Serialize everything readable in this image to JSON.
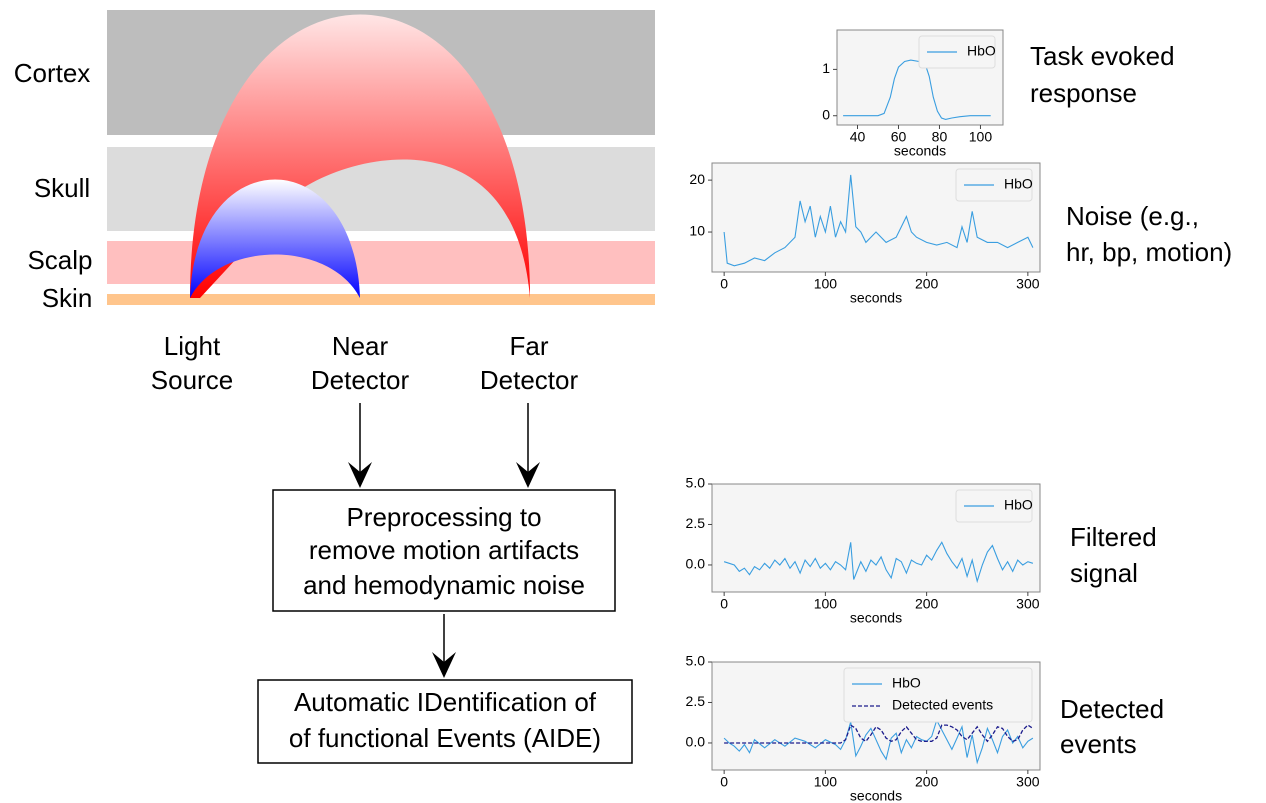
{
  "diagram": {
    "layers": [
      "Cortex",
      "Skull",
      "Scalp",
      "Skin"
    ],
    "optodes": [
      [
        "Light",
        "Source"
      ],
      [
        "Near",
        "Detector"
      ],
      [
        "Far",
        "Detector"
      ]
    ],
    "steps": [
      [
        "Preprocessing to",
        "remove motion artifacts",
        "and hemodynamic noise"
      ],
      [
        "Automatic IDentification of",
        "of functional Events (AIDE)"
      ]
    ],
    "captions": [
      [
        "Task evoked",
        "response"
      ],
      [
        "Noise (e.g.,",
        "hr, bp, motion)"
      ],
      [
        "Filtered",
        "signal"
      ],
      [
        "Detected",
        "events"
      ]
    ]
  },
  "chart_data": [
    {
      "type": "line",
      "xlabel": "seconds",
      "legend": "upper right",
      "x": [
        33,
        40,
        50,
        53,
        56,
        58,
        60,
        63,
        66,
        70,
        73,
        75,
        77,
        79,
        81,
        83,
        86,
        90,
        95,
        100,
        105
      ],
      "series": [
        {
          "name": "HbO",
          "color": "#3a9ee0",
          "values": [
            0,
            0,
            0,
            0.05,
            0.4,
            0.8,
            1.05,
            1.17,
            1.2,
            1.17,
            1.12,
            0.85,
            0.4,
            0.1,
            -0.05,
            -0.08,
            -0.05,
            -0.02,
            0,
            0,
            0
          ]
        }
      ],
      "xlim": [
        30,
        111
      ],
      "ylim": [
        -0.2,
        1.85
      ],
      "xticks": [
        40,
        60,
        80,
        100
      ],
      "yticks": [
        0,
        1
      ]
    },
    {
      "type": "line",
      "xlabel": "seconds",
      "legend": "upper right",
      "x": [
        0,
        3,
        10,
        20,
        30,
        40,
        50,
        60,
        70,
        75,
        80,
        85,
        90,
        95,
        100,
        105,
        110,
        115,
        120,
        125,
        130,
        135,
        140,
        150,
        160,
        170,
        180,
        185,
        190,
        200,
        210,
        220,
        230,
        235,
        240,
        245,
        250,
        260,
        270,
        280,
        290,
        300,
        305
      ],
      "series": [
        {
          "name": "HbO",
          "color": "#3a9ee0",
          "values": [
            10,
            4,
            3.5,
            4,
            5,
            4.5,
            6,
            7,
            9,
            16,
            12,
            15,
            9,
            13,
            10,
            15,
            9,
            12,
            10,
            21,
            11,
            10,
            8,
            10,
            8,
            9,
            13,
            10,
            9,
            8,
            7.5,
            8,
            7,
            11,
            8,
            14,
            9,
            8,
            8,
            7,
            8,
            9,
            7
          ]
        }
      ],
      "xlim": [
        -12,
        312
      ],
      "ylim": [
        2.3,
        23.3
      ],
      "xticks": [
        0,
        100,
        200,
        300
      ],
      "yticks": [
        10,
        20
      ]
    },
    {
      "type": "line",
      "xlabel": "seconds",
      "legend": "upper right",
      "x": [
        0,
        5,
        10,
        15,
        20,
        25,
        30,
        35,
        40,
        45,
        50,
        55,
        60,
        65,
        70,
        75,
        80,
        85,
        90,
        95,
        100,
        105,
        110,
        115,
        120,
        125,
        128,
        135,
        140,
        145,
        150,
        155,
        160,
        165,
        170,
        175,
        180,
        185,
        190,
        195,
        200,
        205,
        210,
        215,
        220,
        225,
        230,
        235,
        240,
        245,
        250,
        255,
        260,
        265,
        270,
        275,
        280,
        285,
        290,
        295,
        300,
        305
      ],
      "series": [
        {
          "name": "HbO",
          "color": "#3a9ee0",
          "values": [
            0.2,
            0.1,
            0,
            -0.4,
            -0.2,
            -0.6,
            -0.1,
            -0.3,
            0.1,
            -0.2,
            0.3,
            0,
            0.4,
            -0.2,
            0.2,
            -0.5,
            0.3,
            -0.1,
            0.4,
            -0.2,
            0.1,
            -0.3,
            0.2,
            0,
            -0.3,
            1.4,
            -0.9,
            0.2,
            -0.4,
            0.3,
            0,
            0.5,
            -0.3,
            -0.8,
            0.4,
            0.2,
            -0.5,
            0.3,
            0.1,
            0,
            0.6,
            0.3,
            0.9,
            1.4,
            0.7,
            0.2,
            -0.2,
            0.4,
            -0.7,
            0.3,
            -1,
            0,
            0.8,
            1.2,
            0.4,
            -0.3,
            0.2,
            -0.4,
            0.3,
            0,
            0.2,
            0.1
          ]
        }
      ],
      "xlim": [
        -12,
        312
      ],
      "ylim": [
        -1.67,
        5.0
      ],
      "xticks": [
        0,
        100,
        200,
        300
      ],
      "yticks": [
        {
          "value": 0,
          "label": "0.0"
        },
        {
          "value": 2.5,
          "label": "2.5"
        },
        {
          "value": 5,
          "label": "5.0"
        }
      ]
    },
    {
      "type": "line",
      "xlabel": "seconds",
      "legend": "upper right",
      "x": [
        0,
        5,
        10,
        15,
        20,
        25,
        30,
        40,
        50,
        60,
        70,
        80,
        90,
        100,
        110,
        115,
        120,
        125,
        130,
        135,
        140,
        145,
        150,
        155,
        160,
        165,
        170,
        175,
        180,
        185,
        190,
        195,
        200,
        205,
        210,
        215,
        220,
        225,
        230,
        235,
        240,
        245,
        250,
        255,
        260,
        265,
        270,
        275,
        280,
        285,
        290,
        295,
        300,
        305
      ],
      "series": [
        {
          "name": "HbO",
          "color": "#3a9ee0",
          "values": [
            0.3,
            0,
            -0.2,
            -0.5,
            -0.1,
            -0.6,
            0.2,
            -0.3,
            0.2,
            -0.2,
            0.3,
            0.1,
            -0.3,
            0.2,
            -0.1,
            -0.4,
            0.2,
            1.3,
            -0.8,
            -0.2,
            0.5,
            0.9,
            0.2,
            -0.5,
            -1,
            0.3,
            0.6,
            -0.6,
            0.2,
            -0.3,
            0.4,
            0.2,
            0.1,
            0.4,
            1.4,
            0.8,
            0.2,
            -0.4,
            0.3,
            1,
            -0.9,
            0.5,
            -1.2,
            -0.3,
            0.9,
            0.2,
            -0.6,
            0.4,
            0.8,
            0,
            0.4,
            -0.3,
            0.1,
            0.3
          ]
        },
        {
          "name": "Detected events",
          "color": "#1c1c8c",
          "style": "dashed",
          "values": [
            0,
            0,
            0,
            0,
            0,
            0,
            0,
            0,
            0,
            0,
            0,
            0,
            0,
            0,
            0,
            0,
            0.2,
            1.1,
            0.9,
            0.3,
            0.1,
            0.5,
            1.0,
            0.8,
            0.3,
            0.1,
            0.2,
            0.7,
            1.0,
            0.6,
            0.2,
            0.1,
            0.1,
            0.1,
            0.3,
            1.1,
            1.1,
            1.0,
            0.8,
            0.4,
            0.2,
            0.6,
            1.0,
            0.5,
            0.1,
            0.5,
            1.0,
            0.9,
            0.4,
            0.1,
            0.2,
            0.8,
            1.1,
            0.9
          ]
        }
      ],
      "xlim": [
        -12,
        312
      ],
      "ylim": [
        -1.67,
        5.0
      ],
      "xticks": [
        0,
        100,
        200,
        300
      ],
      "yticks": [
        {
          "value": 0,
          "label": "0.0"
        },
        {
          "value": 2.5,
          "label": "2.5"
        },
        {
          "value": 5,
          "label": "5.0"
        }
      ]
    }
  ]
}
